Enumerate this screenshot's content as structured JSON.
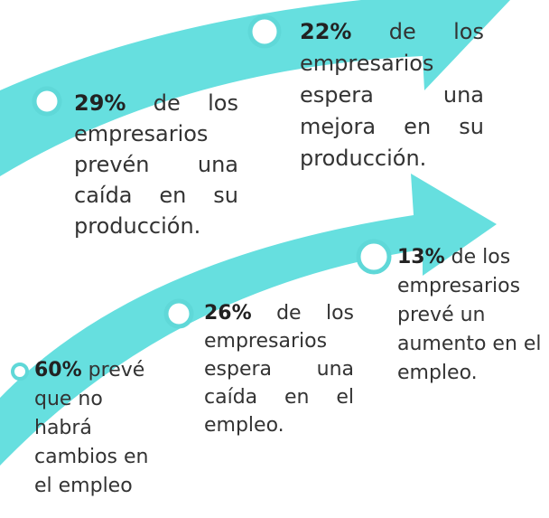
{
  "items": [
    {
      "percent": "29%",
      "text": "de los empresarios prevén una caída en su producción."
    },
    {
      "percent": "22%",
      "text": "de los empresarios espera una mejora en su producción."
    },
    {
      "percent": "13%",
      "text": "de los empresarios prevé un aumento en el empleo."
    },
    {
      "percent": "26%",
      "text": "de los empresarios espera una caída en el empleo."
    },
    {
      "percent": "60%",
      "text": "prevé que no habrá cambios en el empleo"
    }
  ]
}
